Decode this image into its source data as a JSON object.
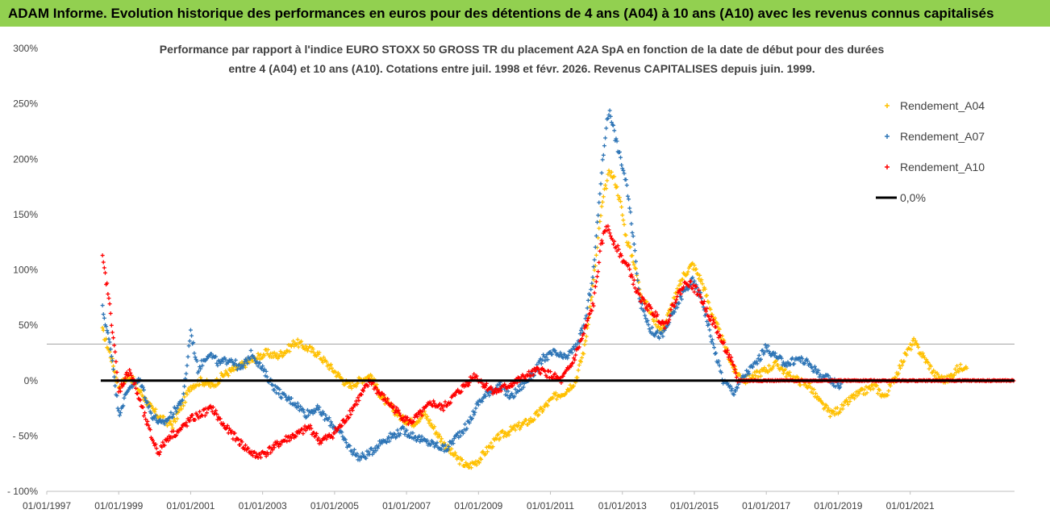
{
  "banner": {
    "title": "ADAM Informe. Evolution historique des performances en euros pour des détentions de 4 ans (A04) à 10 ans (A10) avec les revenus connus capitalisés"
  },
  "chart_data": {
    "type": "scatter",
    "title_line1": "Performance par rapport à l'indice EURO STOXX 50 GROSS TR  du placement A2A SpA en fonction de la date de début pour des durées",
    "title_line2": "entre 4 (A04) et 10 ans (A10). Cotations entre juil. 1998 et févr. 2026. Revenus CAPITALISES depuis juin. 1999.",
    "xlabel": "",
    "ylabel": "",
    "x_range": [
      1997.0,
      2023.9
    ],
    "ylim": [
      -100,
      300
    ],
    "y_ticks": [
      {
        "value": 300,
        "label": "300%"
      },
      {
        "value": 250,
        "label": "250%"
      },
      {
        "value": 200,
        "label": "200%"
      },
      {
        "value": 150,
        "label": "150%"
      },
      {
        "value": 100,
        "label": "100%"
      },
      {
        "value": 50,
        "label": "50%"
      },
      {
        "value": 0,
        "label": "0%"
      },
      {
        "value": -50,
        "label": "- 50%"
      },
      {
        "value": -100,
        "label": "- 100%"
      }
    ],
    "x_ticks": [
      {
        "value": 1997.0,
        "label": "01/01/1997"
      },
      {
        "value": 1999.0,
        "label": "01/01/1999"
      },
      {
        "value": 2001.0,
        "label": "01/01/2001"
      },
      {
        "value": 2003.0,
        "label": "01/01/2003"
      },
      {
        "value": 2005.0,
        "label": "01/01/2005"
      },
      {
        "value": 2007.0,
        "label": "01/01/2007"
      },
      {
        "value": 2009.0,
        "label": "01/01/2009"
      },
      {
        "value": 2011.0,
        "label": "01/01/2011"
      },
      {
        "value": 2013.0,
        "label": "01/01/2013"
      },
      {
        "value": 2015.0,
        "label": "01/01/2015"
      },
      {
        "value": 2017.0,
        "label": "01/01/2017"
      },
      {
        "value": 2019.0,
        "label": "01/01/2019"
      },
      {
        "value": 2021.0,
        "label": "01/01/2021"
      }
    ],
    "reference_line_value": 33,
    "legend_position": "top-right",
    "series": [
      {
        "name": "Rendement_A04",
        "color": "#ffc000",
        "marker": "+",
        "points": [
          [
            1998.55,
            45
          ],
          [
            1998.8,
            20
          ],
          [
            1999.0,
            -5
          ],
          [
            1999.3,
            5
          ],
          [
            1999.6,
            -10
          ],
          [
            1999.9,
            -25
          ],
          [
            2000.2,
            -35
          ],
          [
            2000.5,
            -40
          ],
          [
            2000.8,
            -20
          ],
          [
            2001.0,
            -5
          ],
          [
            2001.3,
            0
          ],
          [
            2001.6,
            -5
          ],
          [
            2001.9,
            5
          ],
          [
            2002.2,
            10
          ],
          [
            2002.5,
            15
          ],
          [
            2002.8,
            20
          ],
          [
            2003.1,
            25
          ],
          [
            2003.4,
            22
          ],
          [
            2003.7,
            28
          ],
          [
            2003.9,
            35
          ],
          [
            2004.2,
            30
          ],
          [
            2004.5,
            25
          ],
          [
            2004.8,
            15
          ],
          [
            2005.1,
            5
          ],
          [
            2005.4,
            -5
          ],
          [
            2005.7,
            0
          ],
          [
            2006.0,
            5
          ],
          [
            2006.3,
            -15
          ],
          [
            2006.6,
            -25
          ],
          [
            2006.9,
            -35
          ],
          [
            2007.2,
            -38
          ],
          [
            2007.5,
            -30
          ],
          [
            2007.8,
            -45
          ],
          [
            2008.1,
            -60
          ],
          [
            2008.4,
            -70
          ],
          [
            2008.7,
            -78
          ],
          [
            2009.0,
            -72
          ],
          [
            2009.3,
            -60
          ],
          [
            2009.6,
            -50
          ],
          [
            2009.9,
            -45
          ],
          [
            2010.2,
            -40
          ],
          [
            2010.5,
            -35
          ],
          [
            2010.8,
            -25
          ],
          [
            2011.1,
            -15
          ],
          [
            2011.4,
            -10
          ],
          [
            2011.7,
            0
          ],
          [
            2011.95,
            30
          ],
          [
            2012.2,
            90
          ],
          [
            2012.4,
            150
          ],
          [
            2012.5,
            170
          ],
          [
            2012.65,
            190
          ],
          [
            2012.8,
            180
          ],
          [
            2012.95,
            160
          ],
          [
            2013.1,
            130
          ],
          [
            2013.3,
            110
          ],
          [
            2013.5,
            80
          ],
          [
            2013.8,
            60
          ],
          [
            2014.1,
            45
          ],
          [
            2014.4,
            70
          ],
          [
            2014.7,
            95
          ],
          [
            2014.95,
            105
          ],
          [
            2015.2,
            90
          ],
          [
            2015.5,
            60
          ],
          [
            2015.8,
            35
          ],
          [
            2016.1,
            10
          ],
          [
            2016.4,
            0
          ],
          [
            2016.7,
            5
          ],
          [
            2017.0,
            10
          ],
          [
            2017.3,
            15
          ],
          [
            2017.6,
            5
          ],
          [
            2017.9,
            0
          ],
          [
            2018.2,
            -5
          ],
          [
            2018.5,
            -20
          ],
          [
            2018.8,
            -30
          ],
          [
            2019.1,
            -25
          ],
          [
            2019.4,
            -15
          ],
          [
            2019.7,
            -10
          ],
          [
            2020.0,
            -5
          ],
          [
            2020.3,
            -15
          ],
          [
            2020.6,
            5
          ],
          [
            2020.9,
            25
          ],
          [
            2021.1,
            35
          ],
          [
            2021.4,
            20
          ],
          [
            2021.7,
            5
          ],
          [
            2022.0,
            0
          ],
          [
            2022.3,
            10
          ],
          [
            2022.6,
            15
          ]
        ]
      },
      {
        "name": "Rendement_A07",
        "color": "#2e75b6",
        "marker": "+",
        "points": [
          [
            1998.55,
            65
          ],
          [
            1998.8,
            25
          ],
          [
            1999.0,
            -30
          ],
          [
            1999.3,
            -5
          ],
          [
            1999.6,
            0
          ],
          [
            1999.9,
            -30
          ],
          [
            2000.2,
            -40
          ],
          [
            2000.5,
            -30
          ],
          [
            2000.8,
            -15
          ],
          [
            2001.0,
            45
          ],
          [
            2001.2,
            10
          ],
          [
            2001.5,
            25
          ],
          [
            2001.8,
            15
          ],
          [
            2002.1,
            20
          ],
          [
            2002.4,
            10
          ],
          [
            2002.7,
            25
          ],
          [
            2003.0,
            10
          ],
          [
            2003.3,
            -5
          ],
          [
            2003.6,
            -15
          ],
          [
            2003.9,
            -20
          ],
          [
            2004.2,
            -30
          ],
          [
            2004.5,
            -25
          ],
          [
            2004.8,
            -35
          ],
          [
            2005.1,
            -45
          ],
          [
            2005.4,
            -60
          ],
          [
            2005.7,
            -70
          ],
          [
            2006.0,
            -65
          ],
          [
            2006.3,
            -55
          ],
          [
            2006.6,
            -50
          ],
          [
            2006.9,
            -45
          ],
          [
            2007.2,
            -50
          ],
          [
            2007.5,
            -55
          ],
          [
            2007.8,
            -58
          ],
          [
            2008.1,
            -62
          ],
          [
            2008.4,
            -50
          ],
          [
            2008.7,
            -40
          ],
          [
            2009.0,
            -20
          ],
          [
            2009.3,
            -10
          ],
          [
            2009.6,
            -5
          ],
          [
            2009.9,
            -15
          ],
          [
            2010.2,
            -5
          ],
          [
            2010.5,
            5
          ],
          [
            2010.8,
            20
          ],
          [
            2011.1,
            25
          ],
          [
            2011.4,
            20
          ],
          [
            2011.7,
            30
          ],
          [
            2011.95,
            50
          ],
          [
            2012.2,
            100
          ],
          [
            2012.4,
            180
          ],
          [
            2012.55,
            230
          ],
          [
            2012.65,
            245
          ],
          [
            2012.8,
            220
          ],
          [
            2012.95,
            200
          ],
          [
            2013.1,
            180
          ],
          [
            2013.3,
            130
          ],
          [
            2013.5,
            70
          ],
          [
            2013.8,
            45
          ],
          [
            2014.1,
            40
          ],
          [
            2014.4,
            60
          ],
          [
            2014.7,
            80
          ],
          [
            2014.95,
            90
          ],
          [
            2015.2,
            75
          ],
          [
            2015.5,
            35
          ],
          [
            2015.8,
            0
          ],
          [
            2016.1,
            -10
          ],
          [
            2016.4,
            5
          ],
          [
            2016.7,
            15
          ],
          [
            2017.0,
            30
          ],
          [
            2017.3,
            20
          ],
          [
            2017.6,
            15
          ],
          [
            2017.9,
            20
          ],
          [
            2018.2,
            15
          ],
          [
            2018.5,
            5
          ],
          [
            2018.8,
            0
          ],
          [
            2019.1,
            -5
          ]
        ]
      },
      {
        "name": "Rendement_A10",
        "color": "#ff0000",
        "marker": "+",
        "points": [
          [
            1998.55,
            110
          ],
          [
            1998.7,
            80
          ],
          [
            1998.85,
            40
          ],
          [
            1999.0,
            -10
          ],
          [
            1999.3,
            10
          ],
          [
            1999.6,
            -20
          ],
          [
            1999.9,
            -50
          ],
          [
            2000.1,
            -65
          ],
          [
            2000.4,
            -50
          ],
          [
            2000.7,
            -45
          ],
          [
            2001.0,
            -35
          ],
          [
            2001.3,
            -30
          ],
          [
            2001.6,
            -25
          ],
          [
            2001.9,
            -40
          ],
          [
            2002.2,
            -50
          ],
          [
            2002.5,
            -60
          ],
          [
            2002.8,
            -68
          ],
          [
            2003.1,
            -65
          ],
          [
            2003.4,
            -58
          ],
          [
            2003.7,
            -52
          ],
          [
            2004.0,
            -48
          ],
          [
            2004.3,
            -42
          ],
          [
            2004.6,
            -55
          ],
          [
            2004.9,
            -50
          ],
          [
            2005.2,
            -40
          ],
          [
            2005.5,
            -25
          ],
          [
            2005.8,
            -10
          ],
          [
            2006.0,
            0
          ],
          [
            2006.2,
            -10
          ],
          [
            2006.5,
            -20
          ],
          [
            2006.8,
            -30
          ],
          [
            2007.1,
            -38
          ],
          [
            2007.4,
            -30
          ],
          [
            2007.7,
            -20
          ],
          [
            2008.0,
            -25
          ],
          [
            2008.3,
            -15
          ],
          [
            2008.6,
            -5
          ],
          [
            2008.9,
            5
          ],
          [
            2009.2,
            -5
          ],
          [
            2009.5,
            -10
          ],
          [
            2009.8,
            -5
          ],
          [
            2010.1,
            0
          ],
          [
            2010.4,
            5
          ],
          [
            2010.7,
            10
          ],
          [
            2011.0,
            5
          ],
          [
            2011.3,
            0
          ],
          [
            2011.6,
            15
          ],
          [
            2011.9,
            40
          ],
          [
            2012.2,
            70
          ],
          [
            2012.4,
            120
          ],
          [
            2012.55,
            140
          ],
          [
            2012.7,
            130
          ],
          [
            2012.85,
            120
          ],
          [
            2013.0,
            110
          ],
          [
            2013.2,
            100
          ],
          [
            2013.4,
            80
          ],
          [
            2013.6,
            70
          ],
          [
            2013.9,
            60
          ],
          [
            2014.2,
            50
          ],
          [
            2014.5,
            75
          ],
          [
            2014.8,
            90
          ],
          [
            2015.1,
            80
          ],
          [
            2015.4,
            60
          ],
          [
            2015.7,
            40
          ],
          [
            2016.0,
            20
          ],
          [
            2016.2,
            0
          ],
          [
            2016.6,
            0
          ],
          [
            2017.0,
            0
          ],
          [
            2017.5,
            0
          ],
          [
            2018.0,
            0
          ],
          [
            2018.5,
            0
          ],
          [
            2019.0,
            0
          ],
          [
            2019.5,
            0
          ],
          [
            2020.0,
            0
          ],
          [
            2020.5,
            0
          ],
          [
            2021.0,
            0
          ],
          [
            2021.5,
            0
          ],
          [
            2022.0,
            0
          ],
          [
            2022.5,
            0
          ],
          [
            2023.0,
            0
          ],
          [
            2023.5,
            0
          ],
          [
            2023.9,
            0
          ]
        ]
      }
    ],
    "zero_line": {
      "name": "0,0%",
      "value": 0,
      "x_start": 1998.5,
      "x_end": 2023.9,
      "color": "#000000"
    }
  }
}
